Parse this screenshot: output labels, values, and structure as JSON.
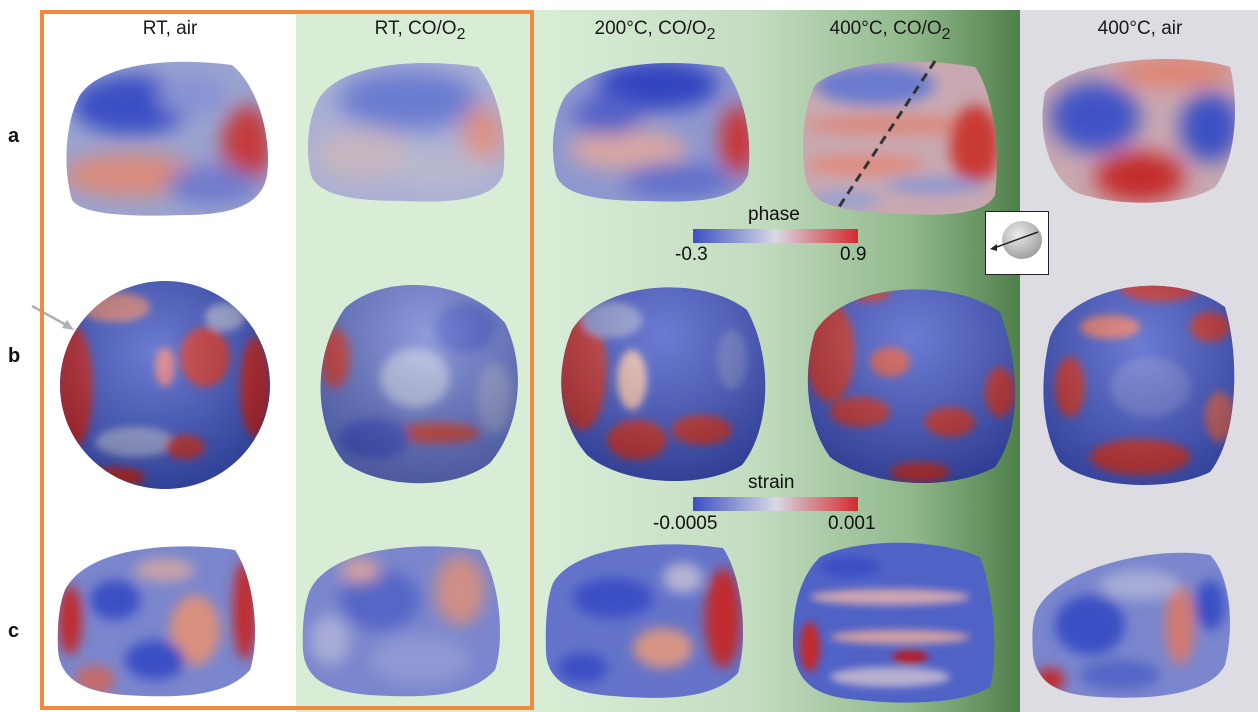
{
  "columns": [
    {
      "label": "RT, air"
    },
    {
      "label": "RT, CO/O",
      "sub": "2"
    },
    {
      "label": "200°C, CO/O",
      "sub": "2"
    },
    {
      "label": "400°C, CO/O",
      "sub": "2"
    },
    {
      "label": "400°C, air"
    }
  ],
  "rows": [
    "a",
    "b",
    "c"
  ],
  "colorbars": {
    "phase": {
      "title": "phase",
      "min": "-0.3",
      "max": "0.9"
    },
    "strain": {
      "title": "strain",
      "min": "-0.0005",
      "max": "0.001"
    }
  },
  "colors": {
    "highlight_frame": "#f28a3d",
    "map_low": "#3b4fc4",
    "map_mid": "#c9c9d6",
    "map_high": "#c71f2b",
    "panel_green": "#d8ecd6",
    "panel_grey": "#dcdce2"
  }
}
